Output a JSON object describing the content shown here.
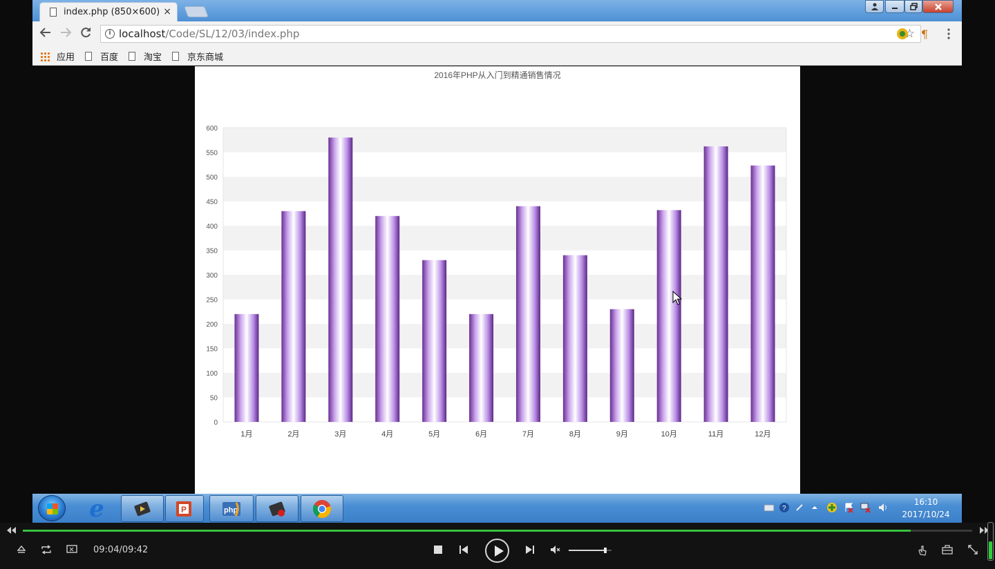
{
  "browser": {
    "tab_title": "index.php (850×600)",
    "tab_close": "×",
    "url_host": "localhost",
    "url_path": "/Code/SL/12/03/index.php",
    "bookmarks": [
      "应用",
      "百度",
      "淘宝",
      "京东商城"
    ]
  },
  "chart_data": {
    "type": "bar",
    "title": "2016年PHP从入门到精通销售情况",
    "categories": [
      "1月",
      "2月",
      "3月",
      "4月",
      "5月",
      "6月",
      "7月",
      "8月",
      "9月",
      "10月",
      "11月",
      "12月"
    ],
    "values": [
      220,
      430,
      580,
      420,
      330,
      220,
      440,
      340,
      230,
      432,
      562,
      523
    ],
    "ylim": [
      0,
      600
    ],
    "yticks": [
      0,
      50,
      100,
      150,
      200,
      250,
      300,
      350,
      400,
      450,
      500,
      550,
      600
    ],
    "grid": "alternating horizontal bands",
    "bar_colors": [
      "#6a2f92",
      "#c9a3ec",
      "#ffffff",
      "#b98ee6",
      "#5d2786"
    ]
  },
  "taskbar": {
    "time": "16:10",
    "date": "2017/10/24"
  },
  "player": {
    "timecode": "09:04/09:42",
    "progress": 0.935,
    "volume": 0.85
  },
  "colors": {
    "titlebar": "#5f9ddc",
    "progress": "#37c23e"
  }
}
